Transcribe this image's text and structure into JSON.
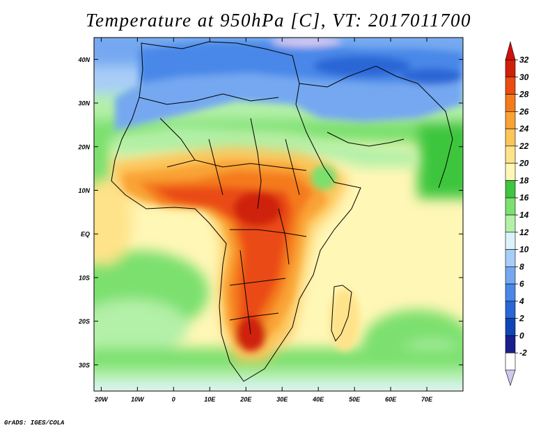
{
  "title": "Temperature at 950hPa [C], VT: 2017011700",
  "credit": "GrADS: IGES/COLA",
  "map": {
    "lat_labels": [
      "40N",
      "30N",
      "20N",
      "10N",
      "EQ",
      "10S",
      "20S",
      "30S"
    ],
    "lat_values": [
      40,
      30,
      20,
      10,
      0,
      -10,
      -20,
      -30
    ],
    "lon_labels": [
      "20W",
      "10W",
      "0",
      "10E",
      "20E",
      "30E",
      "40E",
      "50E",
      "60E",
      "70E"
    ],
    "lon_values": [
      -20,
      -10,
      0,
      10,
      20,
      30,
      40,
      50,
      60,
      70
    ],
    "extent": {
      "lon_min": -22,
      "lon_max": 80,
      "lat_min": -36,
      "lat_max": 45
    }
  },
  "colorbar": {
    "labels": [
      "32",
      "30",
      "28",
      "26",
      "24",
      "22",
      "20",
      "18",
      "16",
      "14",
      "12",
      "10",
      "8",
      "6",
      "4",
      "2",
      "0",
      "-2"
    ],
    "colors": [
      "#ffffff",
      "#1b1f8c",
      "#1045b5",
      "#2966d6",
      "#4a88e8",
      "#75a8f0",
      "#a8cdf7",
      "#dcf3fb",
      "#b3f0a8",
      "#7ce06e",
      "#3ec63e",
      "#fff7b6",
      "#ffe38a",
      "#fdc45a",
      "#f9a236",
      "#f47a1c",
      "#ea4c12",
      "#cf2008"
    ],
    "min_color": "#d0c8f0",
    "max_color": "#d01010"
  }
}
